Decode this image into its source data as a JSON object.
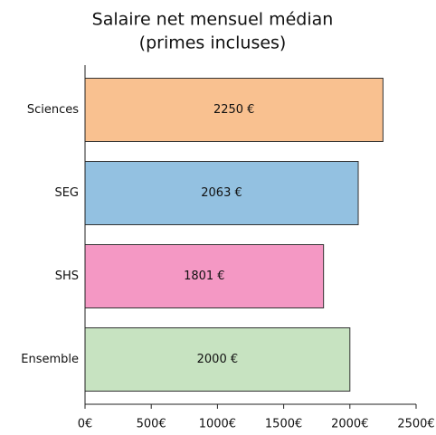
{
  "chart_data": {
    "type": "bar",
    "orientation": "horizontal",
    "title": [
      "Salaire net mensuel médian",
      "(primes incluses)"
    ],
    "categories": [
      "Sciences",
      "SEG",
      "SHS",
      "Ensemble"
    ],
    "values": [
      2250,
      2063,
      1801,
      2000
    ],
    "value_labels": [
      "2250 €",
      "2063 €",
      "1801 €",
      "2000 €"
    ],
    "colors": [
      "#f9c190",
      "#93c1e1",
      "#f498c4",
      "#c7e3c1"
    ],
    "xlim": [
      0,
      2500
    ],
    "xticks": [
      {
        "value": 0,
        "label": "0€"
      },
      {
        "value": 500,
        "label": "500€"
      },
      {
        "value": 1000,
        "label": "1000€"
      },
      {
        "value": 1500,
        "label": "1500€"
      },
      {
        "value": 2000,
        "label": "2000€"
      },
      {
        "value": 2500,
        "label": "2500€"
      }
    ]
  }
}
